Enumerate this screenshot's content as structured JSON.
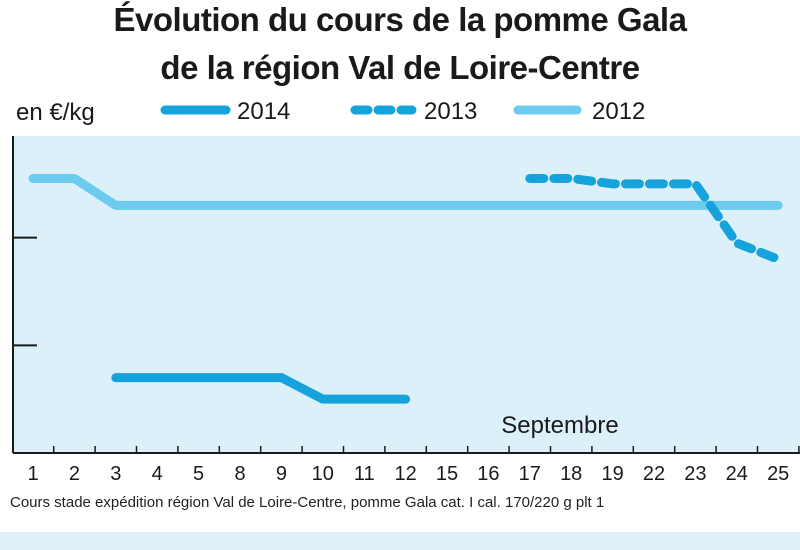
{
  "title_line1": "Évolution du cours de la pomme Gala",
  "title_line2": "de la région Val de Loire-Centre",
  "caption": "Cours stade expédition région Val de Loire-Centre, pomme Gala cat. I cal. 170/220 g plt 1",
  "colors": {
    "plot_bg": "#dcf0fa",
    "c2014": "#16a3dc",
    "c2013": "#16a3dc",
    "c2012": "#6ccbef",
    "axis": "#1a1a1a"
  },
  "chart_data": {
    "type": "line",
    "ylabel": "en €/kg",
    "xlabel": "Septembre",
    "categories": [
      "1",
      "2",
      "3",
      "4",
      "5",
      "8",
      "9",
      "10",
      "11",
      "12",
      "15",
      "16",
      "17",
      "18",
      "19",
      "22",
      "23",
      "24",
      "25"
    ],
    "ylim": [
      0,
      3
    ],
    "grid": false,
    "legend_placement": "top",
    "series": [
      {
        "name": "2014",
        "style": "solid",
        "color": "#16a3dc",
        "values": [
          null,
          null,
          0.7,
          0.7,
          0.7,
          0.7,
          0.7,
          0.5,
          0.5,
          0.5,
          null,
          null,
          null,
          null,
          null,
          null,
          null,
          null,
          null
        ]
      },
      {
        "name": "2013",
        "style": "dashed",
        "color": "#16a3dc",
        "values": [
          null,
          null,
          null,
          null,
          null,
          null,
          null,
          null,
          null,
          null,
          null,
          null,
          2.55,
          2.55,
          2.5,
          2.5,
          2.5,
          1.95,
          1.8
        ]
      },
      {
        "name": "2012",
        "style": "solid",
        "color": "#6ccbef",
        "values": [
          2.55,
          2.55,
          2.3,
          2.3,
          2.3,
          2.3,
          2.3,
          2.3,
          2.3,
          2.3,
          2.3,
          2.3,
          2.3,
          2.3,
          2.3,
          2.3,
          2.3,
          2.3,
          2.3
        ]
      }
    ]
  }
}
